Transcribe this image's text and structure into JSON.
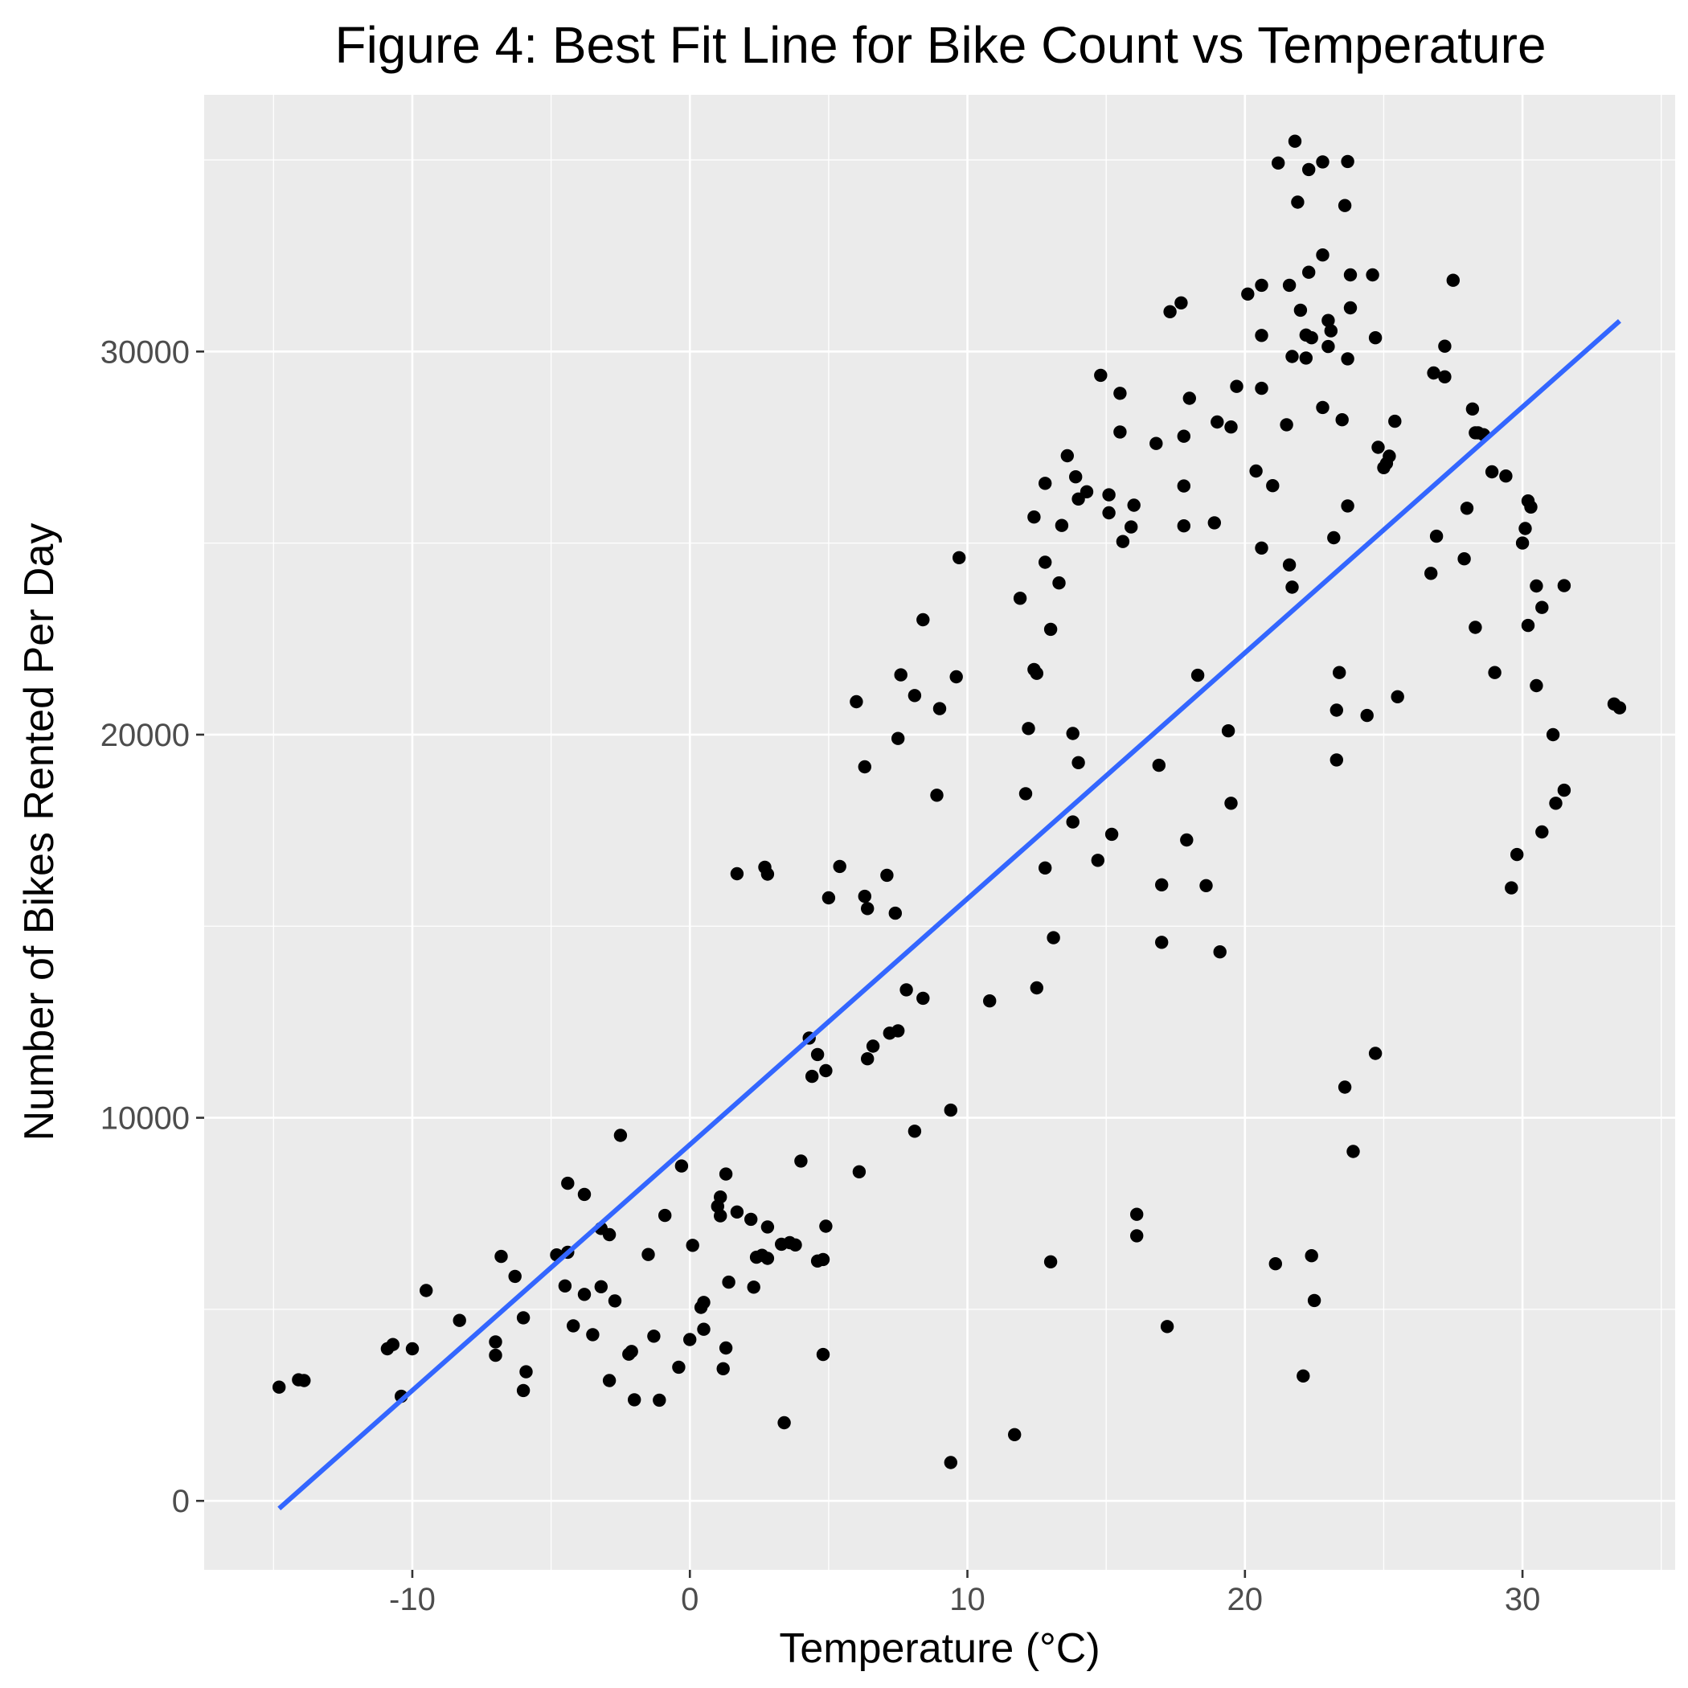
{
  "chart_data": {
    "type": "scatter",
    "title": "Figure 4: Best Fit Line for Bike Count vs Temperature",
    "xlabel": "Temperature (°C)",
    "ylabel": "Number of Bikes Rented Per Day",
    "xlim": [
      -17.5,
      35.5
    ],
    "ylim": [
      -1800,
      36700
    ],
    "x_ticks": [
      -10,
      0,
      10,
      20,
      30
    ],
    "x_tick_labels": [
      "-10",
      "0",
      "10",
      "20",
      "30"
    ],
    "y_ticks": [
      0,
      10000,
      20000,
      30000
    ],
    "y_tick_labels": [
      "0",
      "10000",
      "20000",
      "30000"
    ],
    "grid": true,
    "colors": {
      "panel": "#ebebeb",
      "points": "#000000",
      "fit_line": "#3366ff"
    },
    "fit_line": {
      "x": [
        -14.8,
        33.5
      ],
      "y": [
        -200,
        30800
      ]
    },
    "points": [
      [
        -14.8,
        2970
      ],
      [
        -14.1,
        3160
      ],
      [
        -13.9,
        3140
      ],
      [
        -10.9,
        3970
      ],
      [
        -10.7,
        4080
      ],
      [
        -10.0,
        3970
      ],
      [
        -10.4,
        2730
      ],
      [
        -9.5,
        5490
      ],
      [
        -8.3,
        4710
      ],
      [
        -7.0,
        4150
      ],
      [
        -7.0,
        3800
      ],
      [
        -6.8,
        6380
      ],
      [
        -6.3,
        5860
      ],
      [
        -6.0,
        4780
      ],
      [
        -5.9,
        3370
      ],
      [
        -6.0,
        2880
      ],
      [
        -4.8,
        6420
      ],
      [
        -4.5,
        5610
      ],
      [
        -4.4,
        8290
      ],
      [
        -4.4,
        6490
      ],
      [
        -4.2,
        4570
      ],
      [
        -3.8,
        5390
      ],
      [
        -3.8,
        8000
      ],
      [
        -3.5,
        4340
      ],
      [
        -3.2,
        7110
      ],
      [
        -3.2,
        5590
      ],
      [
        -2.9,
        6950
      ],
      [
        -2.9,
        3140
      ],
      [
        -2.7,
        5220
      ],
      [
        -2.5,
        9540
      ],
      [
        -2.2,
        3830
      ],
      [
        -2.1,
        3900
      ],
      [
        -2.0,
        2640
      ],
      [
        -1.5,
        6430
      ],
      [
        -1.3,
        4300
      ],
      [
        -1.1,
        2630
      ],
      [
        -0.9,
        7450
      ],
      [
        -0.4,
        3490
      ],
      [
        -0.3,
        8740
      ],
      [
        0.0,
        4210
      ],
      [
        0.1,
        6670
      ],
      [
        0.4,
        5050
      ],
      [
        0.5,
        5180
      ],
      [
        0.5,
        4480
      ],
      [
        1.0,
        7690
      ],
      [
        1.1,
        7440
      ],
      [
        1.1,
        7930
      ],
      [
        1.2,
        3450
      ],
      [
        1.3,
        3990
      ],
      [
        1.3,
        8530
      ],
      [
        1.4,
        5710
      ],
      [
        1.7,
        16370
      ],
      [
        1.7,
        7540
      ],
      [
        2.2,
        7350
      ],
      [
        2.3,
        5580
      ],
      [
        2.4,
        6360
      ],
      [
        2.6,
        6410
      ],
      [
        2.7,
        16540
      ],
      [
        2.8,
        16360
      ],
      [
        2.8,
        7150
      ],
      [
        2.8,
        6330
      ],
      [
        3.3,
        6700
      ],
      [
        3.4,
        2040
      ],
      [
        3.6,
        6740
      ],
      [
        3.8,
        6680
      ],
      [
        4.0,
        8870
      ],
      [
        4.3,
        12080
      ],
      [
        4.4,
        11080
      ],
      [
        4.6,
        11650
      ],
      [
        4.6,
        6260
      ],
      [
        4.8,
        6300
      ],
      [
        4.8,
        3820
      ],
      [
        4.9,
        11230
      ],
      [
        4.9,
        7170
      ],
      [
        5.0,
        15740
      ],
      [
        5.4,
        16560
      ],
      [
        6.0,
        20860
      ],
      [
        6.1,
        8590
      ],
      [
        6.3,
        19160
      ],
      [
        6.3,
        15780
      ],
      [
        6.4,
        11540
      ],
      [
        6.4,
        15460
      ],
      [
        6.6,
        11870
      ],
      [
        7.1,
        16330
      ],
      [
        7.2,
        12210
      ],
      [
        7.4,
        15340
      ],
      [
        7.5,
        19900
      ],
      [
        7.5,
        12270
      ],
      [
        7.6,
        21560
      ],
      [
        7.8,
        13340
      ],
      [
        8.1,
        21020
      ],
      [
        8.1,
        9650
      ],
      [
        8.4,
        23000
      ],
      [
        8.4,
        13120
      ],
      [
        8.9,
        18420
      ],
      [
        9.0,
        20680
      ],
      [
        9.4,
        10200
      ],
      [
        9.4,
        1000
      ],
      [
        9.6,
        21510
      ],
      [
        9.7,
        24620
      ],
      [
        10.8,
        13050
      ],
      [
        11.7,
        1730
      ],
      [
        11.9,
        23560
      ],
      [
        12.1,
        18460
      ],
      [
        12.2,
        20160
      ],
      [
        12.4,
        25680
      ],
      [
        12.4,
        21700
      ],
      [
        12.5,
        21600
      ],
      [
        12.5,
        13390
      ],
      [
        12.8,
        26560
      ],
      [
        12.8,
        24500
      ],
      [
        12.8,
        16520
      ],
      [
        13.0,
        22750
      ],
      [
        13.0,
        6240
      ],
      [
        13.1,
        14700
      ],
      [
        13.3,
        23960
      ],
      [
        13.4,
        25460
      ],
      [
        13.6,
        27280
      ],
      [
        13.8,
        20030
      ],
      [
        13.8,
        17720
      ],
      [
        13.9,
        26730
      ],
      [
        14.0,
        19270
      ],
      [
        14.0,
        26150
      ],
      [
        14.3,
        26340
      ],
      [
        14.7,
        16720
      ],
      [
        14.8,
        29380
      ],
      [
        15.1,
        26260
      ],
      [
        15.1,
        25790
      ],
      [
        15.2,
        17400
      ],
      [
        15.5,
        27900
      ],
      [
        15.5,
        28910
      ],
      [
        15.6,
        25040
      ],
      [
        15.9,
        25420
      ],
      [
        16.0,
        25990
      ],
      [
        16.1,
        7480
      ],
      [
        16.1,
        6920
      ],
      [
        16.8,
        27600
      ],
      [
        16.9,
        19200
      ],
      [
        17.0,
        16080
      ],
      [
        17.0,
        14580
      ],
      [
        17.2,
        4550
      ],
      [
        17.3,
        31040
      ],
      [
        17.7,
        31270
      ],
      [
        17.8,
        27790
      ],
      [
        17.8,
        26490
      ],
      [
        17.8,
        25450
      ],
      [
        17.9,
        17250
      ],
      [
        18.0,
        28780
      ],
      [
        18.3,
        21550
      ],
      [
        18.6,
        16060
      ],
      [
        18.9,
        25530
      ],
      [
        19.0,
        28160
      ],
      [
        19.1,
        14330
      ],
      [
        19.4,
        20100
      ],
      [
        19.5,
        18210
      ],
      [
        19.5,
        28030
      ],
      [
        19.7,
        29090
      ],
      [
        20.1,
        31500
      ],
      [
        20.4,
        26880
      ],
      [
        20.6,
        31730
      ],
      [
        20.6,
        30420
      ],
      [
        20.6,
        29040
      ],
      [
        20.6,
        24870
      ],
      [
        21.0,
        26500
      ],
      [
        21.1,
        6190
      ],
      [
        21.2,
        34920
      ],
      [
        21.5,
        28090
      ],
      [
        21.6,
        31730
      ],
      [
        21.6,
        24430
      ],
      [
        21.7,
        29870
      ],
      [
        21.7,
        23850
      ],
      [
        21.8,
        35490
      ],
      [
        21.9,
        33900
      ],
      [
        22.0,
        31080
      ],
      [
        22.1,
        3260
      ],
      [
        22.2,
        29830
      ],
      [
        22.2,
        30430
      ],
      [
        22.3,
        34750
      ],
      [
        22.3,
        32070
      ],
      [
        22.4,
        30360
      ],
      [
        22.4,
        6400
      ],
      [
        22.5,
        5230
      ],
      [
        22.8,
        34950
      ],
      [
        22.8,
        32520
      ],
      [
        22.8,
        28540
      ],
      [
        23.0,
        30810
      ],
      [
        23.0,
        30130
      ],
      [
        23.1,
        30540
      ],
      [
        23.2,
        25140
      ],
      [
        23.4,
        21620
      ],
      [
        23.3,
        20640
      ],
      [
        23.3,
        19340
      ],
      [
        23.5,
        28220
      ],
      [
        23.6,
        33810
      ],
      [
        23.7,
        34960
      ],
      [
        23.6,
        10800
      ],
      [
        23.7,
        25970
      ],
      [
        23.7,
        29810
      ],
      [
        23.8,
        32000
      ],
      [
        23.8,
        31140
      ],
      [
        23.9,
        9120
      ],
      [
        24.4,
        20500
      ],
      [
        24.6,
        32000
      ],
      [
        24.7,
        11680
      ],
      [
        24.7,
        30360
      ],
      [
        24.8,
        27500
      ],
      [
        25.0,
        26970
      ],
      [
        25.1,
        27080
      ],
      [
        25.2,
        27270
      ],
      [
        25.4,
        28180
      ],
      [
        25.5,
        20990
      ],
      [
        26.7,
        24210
      ],
      [
        26.8,
        29440
      ],
      [
        26.9,
        25180
      ],
      [
        27.2,
        29340
      ],
      [
        27.2,
        30140
      ],
      [
        27.5,
        31860
      ],
      [
        27.9,
        24590
      ],
      [
        28.0,
        25910
      ],
      [
        28.2,
        28500
      ],
      [
        28.3,
        27880
      ],
      [
        28.3,
        22800
      ],
      [
        28.4,
        27880
      ],
      [
        28.6,
        27830
      ],
      [
        28.9,
        26860
      ],
      [
        29.0,
        21620
      ],
      [
        29.4,
        26750
      ],
      [
        29.6,
        16000
      ],
      [
        29.8,
        16870
      ],
      [
        30.0,
        25000
      ],
      [
        30.1,
        25380
      ],
      [
        30.2,
        26100
      ],
      [
        30.2,
        22850
      ],
      [
        30.3,
        25940
      ],
      [
        30.5,
        23880
      ],
      [
        30.5,
        21280
      ],
      [
        30.7,
        17460
      ],
      [
        30.7,
        23320
      ],
      [
        31.1,
        20000
      ],
      [
        31.2,
        18210
      ],
      [
        31.5,
        18550
      ],
      [
        31.5,
        23890
      ],
      [
        33.3,
        20800
      ],
      [
        33.5,
        20700
      ]
    ]
  }
}
